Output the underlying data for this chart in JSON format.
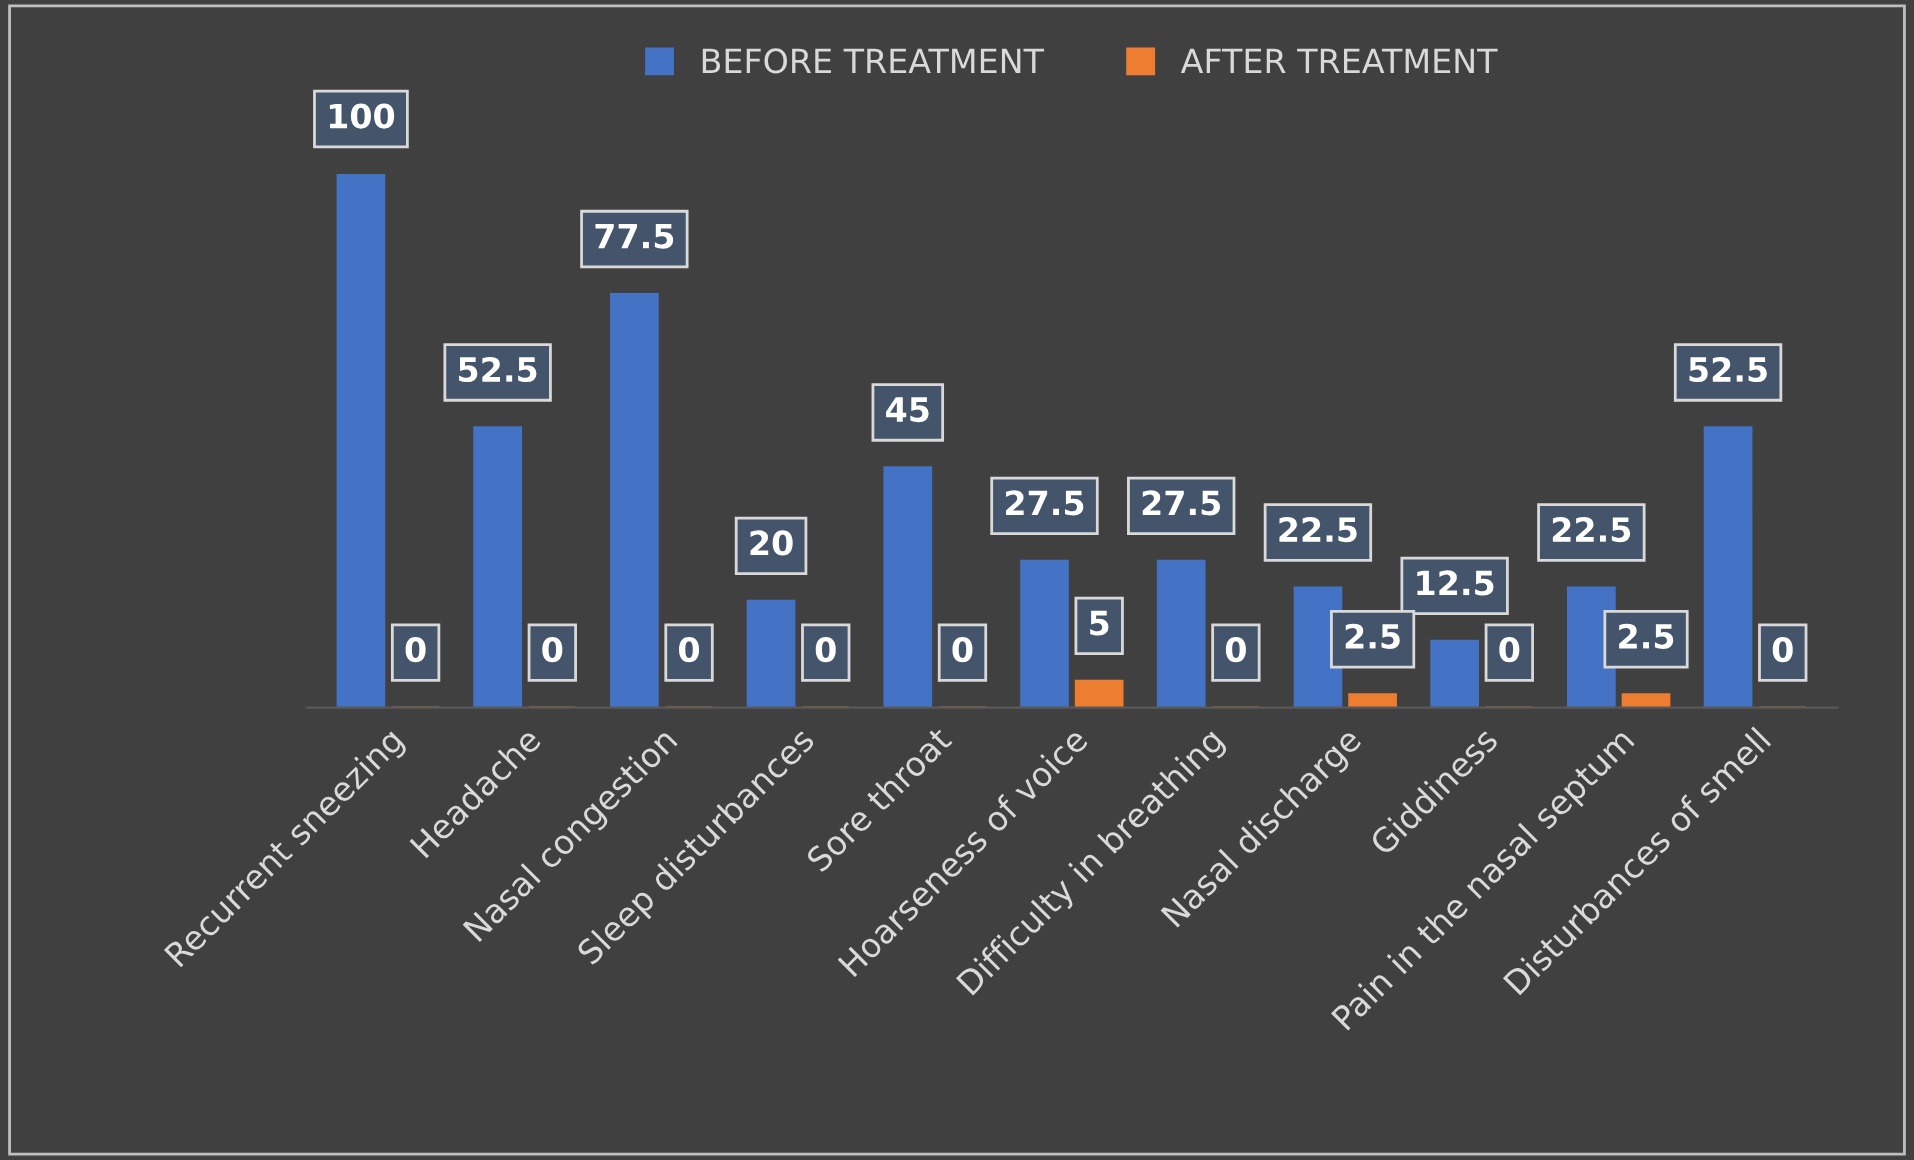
{
  "chart_data": {
    "type": "bar",
    "categories": [
      "Recurrent sneezing",
      "Headache",
      "Nasal congestion",
      "Sleep disturbances",
      "Sore throat",
      "Hoarseness of voice",
      "Difficulty in breathing",
      "Nasal discharge",
      "Giddiness",
      "Pain in the nasal septum",
      "Disturbances of smell"
    ],
    "series": [
      {
        "name": "BEFORE TREATMENT",
        "color": "#4472c4",
        "values": [
          100,
          52.5,
          77.5,
          20,
          45,
          27.5,
          27.5,
          22.5,
          12.5,
          22.5,
          52.5
        ]
      },
      {
        "name": "AFTER TREATMENT",
        "color": "#ed7d31",
        "values": [
          0,
          0,
          0,
          0,
          0,
          5,
          0,
          2.5,
          0,
          2.5,
          0
        ]
      }
    ],
    "data_labels": true,
    "legend": "top",
    "tick_labels": "x"
  }
}
